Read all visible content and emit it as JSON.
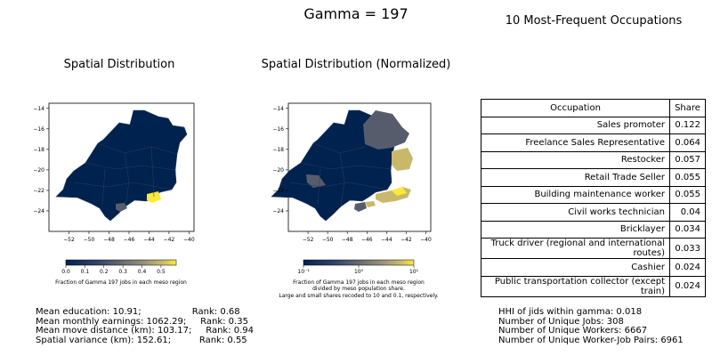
{
  "titles": {
    "main": "Gamma = 197",
    "left": "Spatial Distribution",
    "middle": "Spatial Distribution (Normalized)",
    "right": "10 Most-Frequent Occupations"
  },
  "colors": {
    "base": "#00224e",
    "mid_gray": "#575c6d",
    "light": "#fee838",
    "khaki": "#c9b869",
    "frame": "#000000"
  },
  "chart_data": [
    {
      "type": "map",
      "title": "Spatial Distribution",
      "x_ticks": [
        "−52",
        "−50",
        "−48",
        "−46",
        "−44",
        "−42",
        "−40"
      ],
      "y_ticks": [
        "−14",
        "−16",
        "−18",
        "−20",
        "−22",
        "−24"
      ],
      "xlim": [
        -54,
        -39.5
      ],
      "ylim": [
        -26,
        -13.5
      ],
      "colorbar": {
        "scale": "linear",
        "ticks": [
          "0.0",
          "0.1",
          "0.2",
          "0.3",
          "0.4",
          "0.5"
        ],
        "range": [
          0,
          0.58
        ],
        "label": "Fraction of Gamma 197 jobs in each meso region"
      }
    },
    {
      "type": "map",
      "title": "Spatial Distribution (Normalized)",
      "x_ticks": [
        "−52",
        "−50",
        "−48",
        "−46",
        "−44",
        "−42",
        "−40"
      ],
      "y_ticks": [
        "−14",
        "−16",
        "−18",
        "−20",
        "−22",
        "−24"
      ],
      "xlim": [
        -54,
        -39.5
      ],
      "ylim": [
        -26,
        -13.5
      ],
      "colorbar": {
        "scale": "log",
        "ticks": [
          "10⁻¹",
          "10⁰",
          "10¹"
        ],
        "range": [
          0.1,
          10
        ],
        "label_lines": [
          "Fraction of Gamma 197 jobs in each meso region",
          "divided by meso population share.",
          "Large and small shares recoded to 10 and 0.1, respectively."
        ]
      }
    },
    {
      "type": "table",
      "columns": [
        "Occupation",
        "Share"
      ],
      "rows": [
        [
          "Sales promoter",
          "0.122"
        ],
        [
          "Freelance Sales Representative",
          "0.064"
        ],
        [
          "Restocker",
          "0.057"
        ],
        [
          "Retail Trade Seller",
          "0.055"
        ],
        [
          "Building maintenance worker",
          "0.055"
        ],
        [
          "Civil works technician",
          "0.04"
        ],
        [
          "Bricklayer",
          "0.034"
        ],
        [
          "Truck driver (regional and international routes)",
          "0.033"
        ],
        [
          "Cashier",
          "0.024"
        ],
        [
          "Public transportation collector (except train)",
          "0.024"
        ]
      ]
    }
  ],
  "stats_left": [
    "Mean education: 10.91;                  Rank: 0.68",
    "Mean monthly earnings: 1062.29;     Rank: 0.35",
    "Mean move distance (km): 103.17;     Rank: 0.94",
    "Spatial variance (km): 152.61;          Rank: 0.55"
  ],
  "stats_right": [
    "HHI of jids within gamma: 0.018",
    "Number of Unique Jobs: 308",
    "Number of Unique Workers: 6667",
    "Number of Unique Worker-Job Pairs: 6961"
  ]
}
